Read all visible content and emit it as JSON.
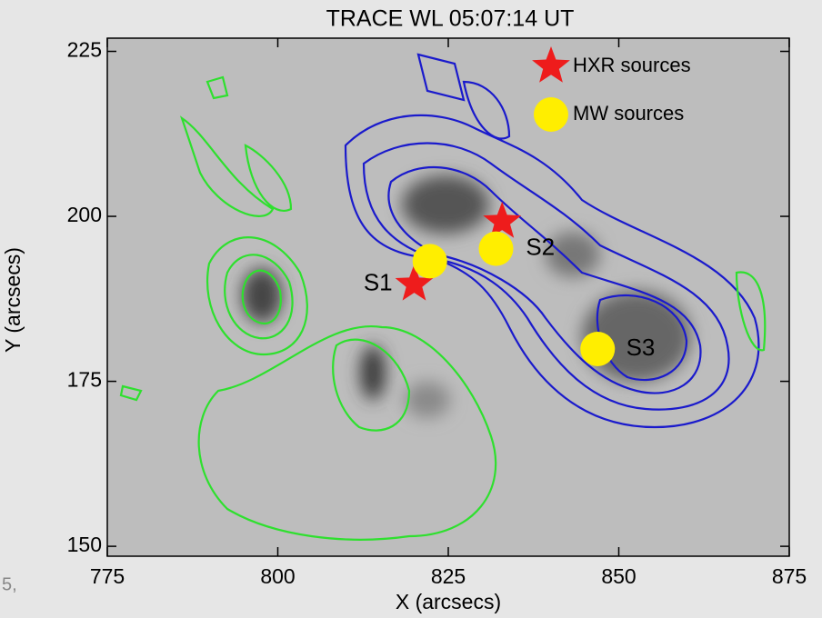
{
  "chart_data": {
    "type": "scatter",
    "title": "TRACE WL 05:07:14 UT",
    "x_label": "X (arcsecs)",
    "y_label": "Y (arcsecs)",
    "xlim": [
      775,
      875
    ],
    "ylim": [
      148.5,
      227
    ],
    "xticks": [
      775,
      800,
      825,
      850,
      875
    ],
    "yticks": [
      150,
      175,
      200,
      225
    ],
    "legend": "upper right",
    "series": [
      {
        "name": "HXR sources",
        "color": "#ee1c1c",
        "marker": "star",
        "x": [
          820,
          832.9
        ],
        "values": [
          189.7,
          199.2
        ]
      },
      {
        "name": "MW sources",
        "color": "#ffee00",
        "marker": "circle",
        "x": [
          822.3,
          832,
          846.9
        ],
        "values": [
          193.2,
          195.1,
          179.9
        ]
      }
    ],
    "annotations": [
      {
        "text": "S1",
        "x": 814.7,
        "y": 189.7
      },
      {
        "text": "S2",
        "x": 838.5,
        "y": 195.1
      },
      {
        "text": "S3",
        "x": 853.2,
        "y": 179.9
      }
    ],
    "page_fragment": "5,"
  }
}
